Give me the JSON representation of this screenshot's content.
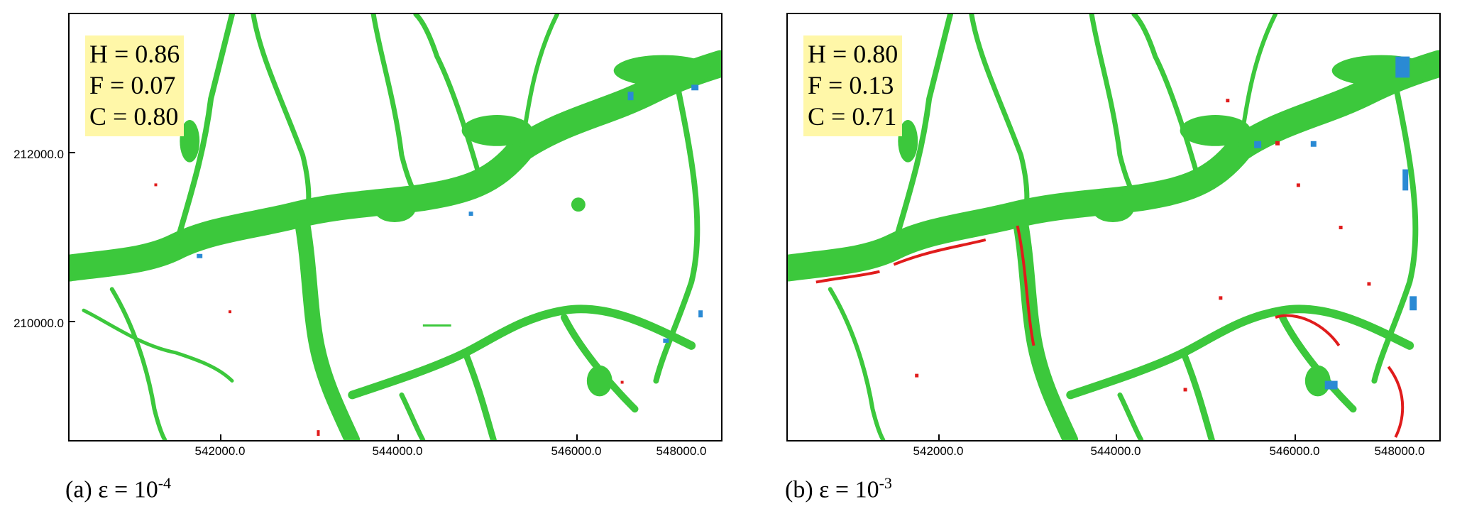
{
  "panels": [
    {
      "id": "a",
      "stats": {
        "h": "H = 0.86",
        "f": "F = 0.07",
        "c": "C = 0.80"
      },
      "caption": {
        "label": "(a)",
        "expr": "ε = 10",
        "exp": "-4"
      }
    },
    {
      "id": "b",
      "stats": {
        "h": "H = 0.80",
        "f": "F = 0.13",
        "c": "C = 0.71"
      },
      "caption": {
        "label": "(b)",
        "expr": "ε = 10",
        "exp": "-3"
      }
    }
  ],
  "axes": {
    "x_ticks": [
      "542000.0",
      "544000.0",
      "546000.0",
      "548000.0"
    ],
    "y_ticks": [
      "212000.0",
      "210000.0"
    ]
  },
  "colors": {
    "hit": "#3cc83c",
    "false_alarm": "#e01c1c",
    "miss": "#2a8ad4",
    "stats_box": "#fff7a8"
  }
}
